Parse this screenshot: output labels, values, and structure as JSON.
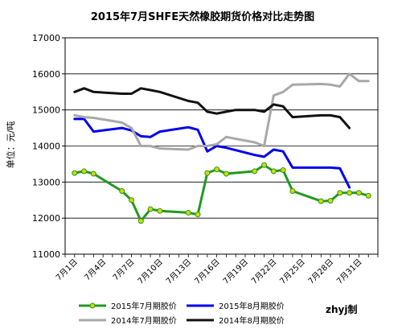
{
  "chart_data": {
    "type": "line",
    "title": "2015年7月SHFE天然橡胶期货价格对比走势图",
    "xlabel": "",
    "ylabel": "单位：元/吨",
    "ylim": [
      11000,
      17000
    ],
    "yticks": [
      11000,
      12000,
      13000,
      14000,
      15000,
      16000,
      17000
    ],
    "categories": [
      "7月1日",
      "7月4日",
      "7月7日",
      "7月10日",
      "7月13日",
      "7月16日",
      "7月19日",
      "7月22日",
      "7月25日",
      "7月28日",
      "7月31日"
    ],
    "category_days": [
      1,
      4,
      7,
      10,
      13,
      16,
      19,
      22,
      25,
      28,
      31
    ],
    "x_range_days": [
      0,
      33
    ],
    "grid": "horizontal",
    "legend_position": "bottom",
    "credit": "zhyj制",
    "series": [
      {
        "name": "2015年7月期胶价",
        "color": "#229922",
        "markers": true,
        "points": [
          [
            1,
            13250
          ],
          [
            2,
            13300
          ],
          [
            3,
            13230
          ],
          [
            6,
            12750
          ],
          [
            7,
            12500
          ],
          [
            8,
            11920
          ],
          [
            9,
            12250
          ],
          [
            10,
            12200
          ],
          [
            13,
            12150
          ],
          [
            14,
            12100
          ],
          [
            15,
            13250
          ],
          [
            16,
            13350
          ],
          [
            17,
            13230
          ],
          [
            20,
            13300
          ],
          [
            21,
            13470
          ],
          [
            22,
            13300
          ],
          [
            23,
            13330
          ],
          [
            24,
            12750
          ],
          [
            27,
            12470
          ],
          [
            28,
            12480
          ],
          [
            29,
            12700
          ],
          [
            30,
            12700
          ],
          [
            31,
            12700
          ],
          [
            32,
            12620
          ]
        ]
      },
      {
        "name": "2015年8月期胶价",
        "color": "#0000ee",
        "markers": false,
        "points": [
          [
            1,
            14750
          ],
          [
            2,
            14750
          ],
          [
            3,
            14400
          ],
          [
            6,
            14500
          ],
          [
            7,
            14430
          ],
          [
            8,
            14270
          ],
          [
            9,
            14250
          ],
          [
            10,
            14400
          ],
          [
            13,
            14520
          ],
          [
            14,
            14450
          ],
          [
            15,
            13850
          ],
          [
            16,
            14000
          ],
          [
            17,
            13950
          ],
          [
            20,
            13750
          ],
          [
            21,
            13700
          ],
          [
            22,
            13900
          ],
          [
            23,
            13850
          ],
          [
            24,
            13400
          ],
          [
            27,
            13400
          ],
          [
            28,
            13400
          ],
          [
            29,
            13380
          ],
          [
            30,
            12850
          ]
        ]
      },
      {
        "name": "2014年7月期胶价",
        "color": "#a8a8a8",
        "markers": false,
        "points": [
          [
            1,
            14850
          ],
          [
            2,
            14800
          ],
          [
            3,
            14780
          ],
          [
            6,
            14650
          ],
          [
            7,
            14500
          ],
          [
            8,
            14000
          ],
          [
            9,
            14000
          ],
          [
            10,
            13930
          ],
          [
            13,
            13900
          ],
          [
            14,
            14000
          ],
          [
            15,
            14000
          ],
          [
            16,
            14050
          ],
          [
            17,
            14250
          ],
          [
            20,
            14100
          ],
          [
            21,
            14000
          ],
          [
            22,
            15400
          ],
          [
            23,
            15500
          ],
          [
            24,
            15700
          ],
          [
            27,
            15720
          ],
          [
            28,
            15700
          ],
          [
            29,
            15650
          ],
          [
            30,
            16000
          ],
          [
            31,
            15800
          ],
          [
            32,
            15800
          ]
        ]
      },
      {
        "name": "2014年8月期胶价",
        "color": "#111111",
        "markers": false,
        "points": [
          [
            1,
            15500
          ],
          [
            2,
            15600
          ],
          [
            3,
            15500
          ],
          [
            6,
            15450
          ],
          [
            7,
            15450
          ],
          [
            8,
            15600
          ],
          [
            9,
            15550
          ],
          [
            10,
            15500
          ],
          [
            13,
            15250
          ],
          [
            14,
            15200
          ],
          [
            15,
            14950
          ],
          [
            16,
            14900
          ],
          [
            17,
            14950
          ],
          [
            18,
            15000
          ],
          [
            20,
            15000
          ],
          [
            21,
            14950
          ],
          [
            22,
            15150
          ],
          [
            23,
            15100
          ],
          [
            24,
            14800
          ],
          [
            27,
            14850
          ],
          [
            28,
            14850
          ],
          [
            29,
            14800
          ],
          [
            30,
            14500
          ]
        ]
      }
    ]
  }
}
